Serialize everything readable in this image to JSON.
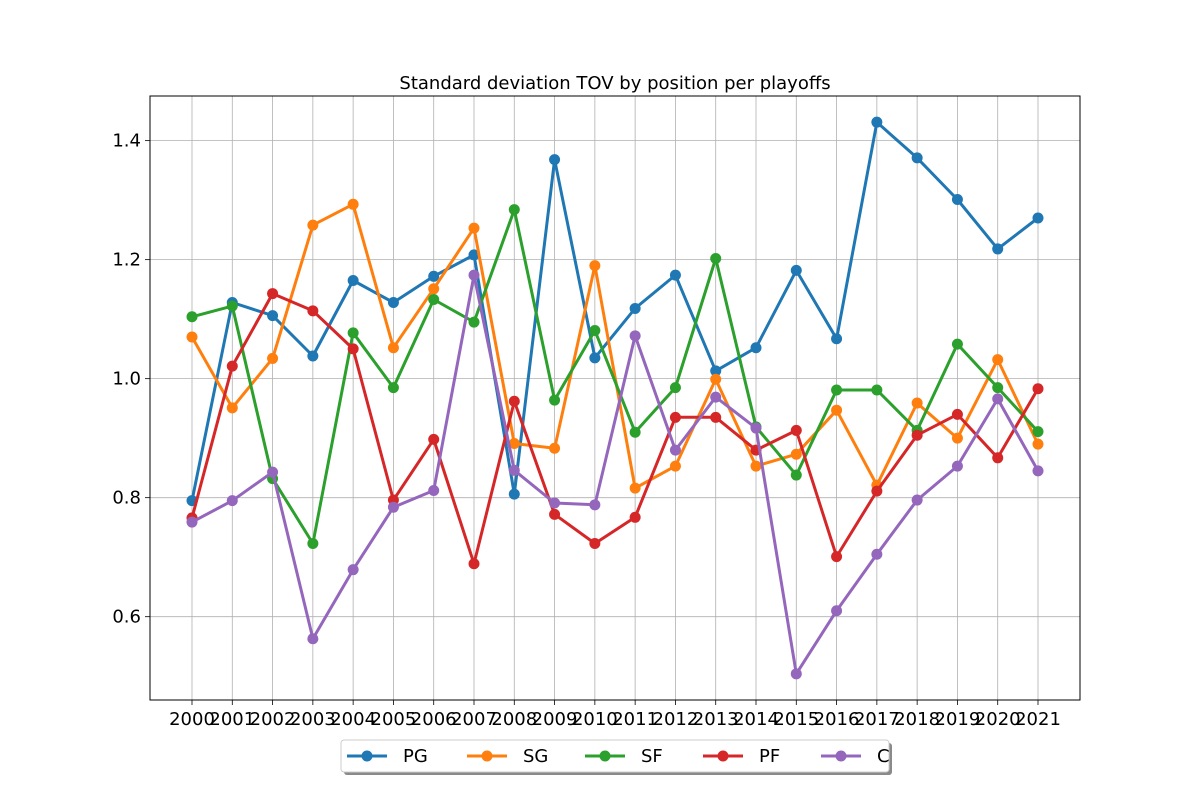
{
  "chart_data": {
    "type": "line",
    "title": "Standard deviation TOV by position per playoffs",
    "xlabel": "",
    "ylabel": "",
    "x": [
      "2000",
      "2001",
      "2002",
      "2003",
      "2004",
      "2005",
      "2006",
      "2007",
      "2008",
      "2009",
      "2010",
      "2011",
      "2012",
      "2013",
      "2014",
      "2015",
      "2016",
      "2017",
      "2018",
      "2019",
      "2020",
      "2021"
    ],
    "ylim": [
      0.46,
      1.475
    ],
    "yticks": [
      0.6,
      0.8,
      1.0,
      1.2,
      1.4
    ],
    "ytick_labels": [
      "0.6",
      "0.8",
      "1.0",
      "1.2",
      "1.4"
    ],
    "grid": true,
    "legend": "bottom-center",
    "series": [
      {
        "name": "PG",
        "color": "#1f77b4",
        "values": [
          0.795,
          1.128,
          1.106,
          1.038,
          1.165,
          1.128,
          1.172,
          1.208,
          0.806,
          1.368,
          1.035,
          1.118,
          1.174,
          1.013,
          1.052,
          1.182,
          1.067,
          1.431,
          1.371,
          1.301,
          1.218,
          1.27
        ]
      },
      {
        "name": "SG",
        "color": "#ff7f0e",
        "values": [
          1.07,
          0.951,
          1.034,
          1.258,
          1.293,
          1.052,
          1.151,
          1.253,
          0.891,
          0.883,
          1.19,
          0.816,
          0.853,
          0.999,
          0.853,
          0.873,
          0.947,
          0.821,
          0.959,
          0.9,
          1.032,
          0.89
        ]
      },
      {
        "name": "SF",
        "color": "#2ca02c",
        "values": [
          1.104,
          1.122,
          0.832,
          0.723,
          1.077,
          0.985,
          1.133,
          1.095,
          1.284,
          0.964,
          1.081,
          0.91,
          0.985,
          1.202,
          0.919,
          0.838,
          0.981,
          0.981,
          0.913,
          1.058,
          0.985,
          0.911
        ]
      },
      {
        "name": "PF",
        "color": "#d62728",
        "values": [
          0.766,
          1.021,
          1.143,
          1.114,
          1.05,
          0.796,
          0.898,
          0.689,
          0.962,
          0.772,
          0.723,
          0.767,
          0.935,
          0.935,
          0.88,
          0.913,
          0.701,
          0.811,
          0.905,
          0.94,
          0.867,
          0.983
        ]
      },
      {
        "name": "C",
        "color": "#9467bd",
        "values": [
          0.759,
          0.795,
          0.843,
          0.563,
          0.679,
          0.784,
          0.812,
          1.174,
          0.846,
          0.791,
          0.788,
          1.072,
          0.88,
          0.969,
          0.917,
          0.504,
          0.61,
          0.705,
          0.796,
          0.853,
          0.966,
          0.845
        ]
      }
    ]
  }
}
